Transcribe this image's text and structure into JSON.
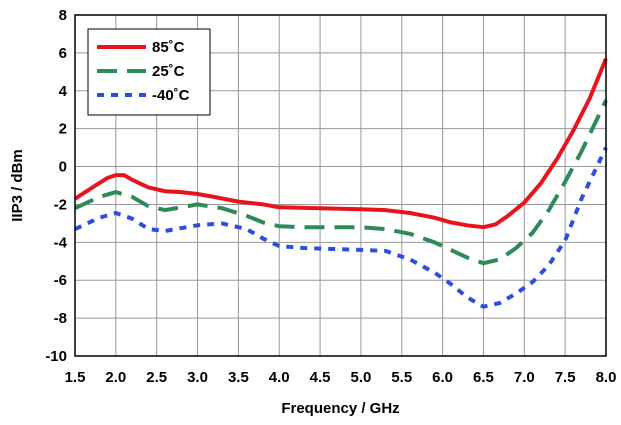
{
  "chart_data": {
    "type": "line",
    "title": "",
    "xlabel": "Frequency / GHz",
    "ylabel": "IIP3 / dBm",
    "xlim": [
      1.5,
      8.0
    ],
    "ylim": [
      -10,
      8
    ],
    "xticks": [
      1.5,
      2.0,
      2.5,
      3.0,
      3.5,
      4.0,
      4.5,
      5.0,
      5.5,
      6.0,
      6.5,
      7.0,
      7.5,
      8.0
    ],
    "yticks": [
      -10,
      -8,
      -6,
      -4,
      -2,
      0,
      2,
      4,
      6,
      8
    ],
    "xtick_labels": [
      "1.5",
      "2.0",
      "2.5",
      "3.0",
      "3.5",
      "4.0",
      "4.5",
      "5.0",
      "5.5",
      "6.0",
      "6.5",
      "7.0",
      "7.5",
      "8.0"
    ],
    "ytick_labels": [
      "-10",
      "-8",
      "-6",
      "-4",
      "-2",
      "0",
      "2",
      "4",
      "6",
      "8"
    ],
    "grid": true,
    "legend_position": "top-left",
    "series": [
      {
        "name": "85˚C",
        "color": "#e8141c",
        "dash": "solid",
        "x": [
          1.5,
          1.75,
          1.9,
          2.0,
          2.1,
          2.2,
          2.4,
          2.6,
          2.8,
          3.0,
          3.2,
          3.5,
          3.8,
          4.0,
          4.5,
          5.0,
          5.3,
          5.6,
          5.9,
          6.1,
          6.3,
          6.5,
          6.65,
          6.8,
          7.0,
          7.2,
          7.4,
          7.6,
          7.8,
          8.0
        ],
        "y": [
          -1.7,
          -1.0,
          -0.6,
          -0.45,
          -0.45,
          -0.7,
          -1.1,
          -1.3,
          -1.35,
          -1.45,
          -1.6,
          -1.85,
          -2.0,
          -2.15,
          -2.2,
          -2.25,
          -2.3,
          -2.45,
          -2.7,
          -2.95,
          -3.1,
          -3.2,
          -3.05,
          -2.6,
          -1.9,
          -0.9,
          0.4,
          1.9,
          3.6,
          5.7
        ]
      },
      {
        "name": "25˚C",
        "color": "#2e8b57",
        "dash": "longdash",
        "x": [
          1.5,
          1.8,
          2.0,
          2.2,
          2.4,
          2.6,
          2.8,
          3.0,
          3.3,
          3.6,
          3.8,
          4.0,
          4.3,
          5.0,
          5.3,
          5.6,
          5.9,
          6.1,
          6.3,
          6.5,
          6.7,
          6.9,
          7.1,
          7.3,
          7.5,
          7.7,
          8.0
        ],
        "y": [
          -2.2,
          -1.6,
          -1.35,
          -1.6,
          -2.1,
          -2.3,
          -2.15,
          -2.0,
          -2.2,
          -2.6,
          -2.95,
          -3.15,
          -3.2,
          -3.2,
          -3.3,
          -3.55,
          -4.0,
          -4.4,
          -4.8,
          -5.1,
          -4.9,
          -4.3,
          -3.5,
          -2.3,
          -0.8,
          0.8,
          3.5
        ]
      },
      {
        "name": "-40˚C",
        "color": "#2a4fe0",
        "dash": "shortdash",
        "x": [
          1.5,
          1.8,
          2.0,
          2.2,
          2.4,
          2.6,
          2.8,
          3.0,
          3.3,
          3.6,
          3.8,
          4.0,
          4.3,
          5.0,
          5.3,
          5.6,
          5.9,
          6.1,
          6.3,
          6.5,
          6.7,
          6.9,
          7.1,
          7.3,
          7.5,
          7.7,
          8.0
        ],
        "y": [
          -3.3,
          -2.7,
          -2.45,
          -2.75,
          -3.3,
          -3.4,
          -3.25,
          -3.1,
          -3.0,
          -3.3,
          -3.8,
          -4.2,
          -4.3,
          -4.4,
          -4.45,
          -4.9,
          -5.6,
          -6.2,
          -6.9,
          -7.4,
          -7.2,
          -6.7,
          -6.1,
          -5.2,
          -3.9,
          -1.7,
          1.0
        ]
      }
    ]
  }
}
